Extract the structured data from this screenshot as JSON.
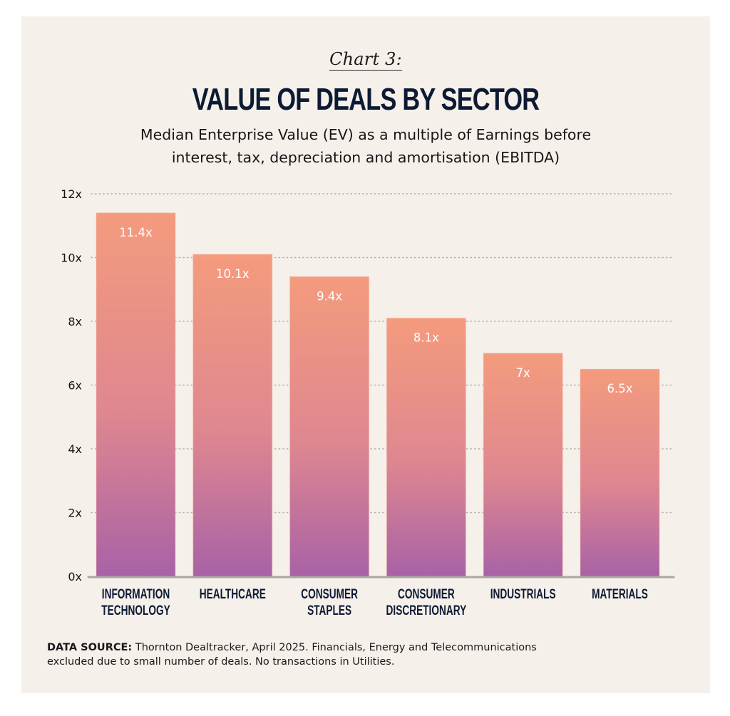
{
  "header": {
    "kicker": "Chart 3:",
    "title": "VALUE OF DEALS BY SECTOR",
    "subtitle_line1": "Median Enterprise Value (EV) as a multiple of Earnings before",
    "subtitle_line2": "interest, tax, depreciation and amortisation (EBITDA)"
  },
  "footnote": {
    "label": "DATA SOURCE:",
    "line1": "Thornton Dealtracker, April 2025. Financials, Energy and Telecommunications",
    "line2": "excluded due to small number of deals. No transactions in Utilities."
  },
  "colors": {
    "background": "#f5f0ea",
    "title": "#0d1a33",
    "bar_top": "#f49b7d",
    "bar_mid": "#df8790",
    "bar_bottom": "#a862a6",
    "grid": "#b5b0aa",
    "axis": "#aaa7a2"
  },
  "chart_data": {
    "type": "bar",
    "title": "VALUE OF DEALS BY SECTOR",
    "subtitle": "Median Enterprise Value (EV) as a multiple of Earnings before interest, tax, depreciation and amortisation (EBITDA)",
    "xlabel": "",
    "ylabel": "",
    "categories": [
      [
        "INFORMATION",
        "TECHNOLOGY"
      ],
      [
        "HEALTHCARE"
      ],
      [
        "CONSUMER",
        "STAPLES"
      ],
      [
        "CONSUMER",
        "DISCRETIONARY"
      ],
      [
        "INDUSTRIALS"
      ],
      [
        "MATERIALS"
      ]
    ],
    "values": [
      11.4,
      10.1,
      9.4,
      8.1,
      7,
      6.5
    ],
    "value_labels": [
      "11.4x",
      "10.1x",
      "9.4x",
      "8.1x",
      "7x",
      "6.5x"
    ],
    "ylim": [
      0,
      12
    ],
    "yticks": [
      0,
      2,
      4,
      6,
      8,
      10,
      12
    ],
    "ytick_labels": [
      "0x",
      "2x",
      "4x",
      "6x",
      "8x",
      "10x",
      "12x"
    ],
    "grid": true,
    "legend": "none"
  }
}
